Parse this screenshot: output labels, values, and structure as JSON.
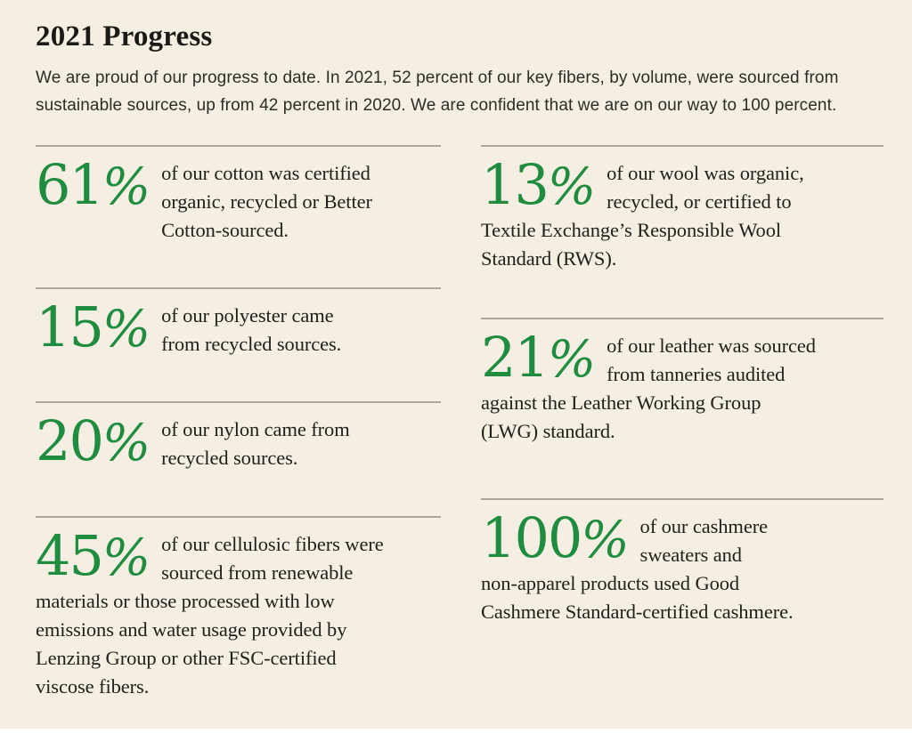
{
  "page": {
    "title": "2021 Progress",
    "intro_lines": [
      "We are proud of our progress to date. In 2021, 52 percent of our key fibers, by volume, were sourced from",
      "sustainable sources, up from 42 percent in 2020. We are confident that we are on our way to 100 percent."
    ],
    "colors": {
      "background": "#f4efe2",
      "accent_green": "#1f8c40",
      "text": "#21201b",
      "rule": "#aaa79a"
    }
  },
  "stats": {
    "left": [
      {
        "id": "cotton",
        "value": "61",
        "unit": "%",
        "description_lines": [
          "of our cotton was certified",
          "organic, recycled or Better",
          "Cotton-sourced."
        ]
      },
      {
        "id": "polyester",
        "value": "15",
        "unit": "%",
        "description_lines": [
          "of our polyester came",
          "from recycled sources."
        ]
      },
      {
        "id": "nylon",
        "value": "20",
        "unit": "%",
        "description_lines": [
          "of our nylon came from",
          "recycled sources."
        ]
      },
      {
        "id": "cellulosic",
        "value": "45",
        "unit": "%",
        "description_lines": [
          "of our cellulosic fibers were",
          "sourced from renewable",
          "materials or those processed with low",
          "emissions and water usage provided by",
          "Lenzing Group or other FSC-certified",
          "viscose fibers."
        ]
      }
    ],
    "right": [
      {
        "id": "wool",
        "value": "13",
        "unit": "%",
        "description_lines": [
          "of our wool was organic,",
          "recycled, or certified to",
          "Textile Exchange’s Responsible Wool",
          "Standard (RWS)."
        ]
      },
      {
        "id": "leather",
        "value": "21",
        "unit": "%",
        "description_lines": [
          "of our leather was sourced",
          "from tanneries audited",
          "against the Leather Working Group",
          "(LWG) standard."
        ]
      },
      {
        "id": "cashmere",
        "value": "100",
        "unit": "%",
        "description_lines": [
          "of our cashmere",
          "sweaters and",
          "non-apparel products used Good",
          "Cashmere Standard-certified cashmere."
        ]
      }
    ]
  }
}
